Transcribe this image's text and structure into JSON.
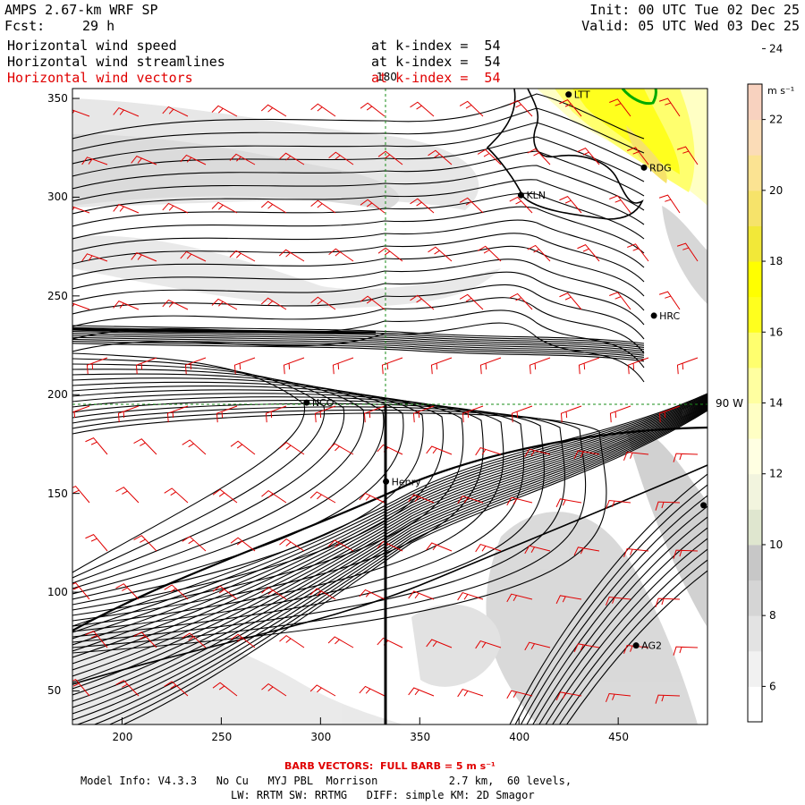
{
  "header": {
    "model": "AMPS 2.67-km WRF SP",
    "fcst_label": "Fcst:",
    "fcst_value": "29 h",
    "init": "Init: 00 UTC Tue 02 Dec 25",
    "valid": "Valid: 05 UTC Wed 03 Dec 25"
  },
  "fields": [
    {
      "name": "Horizontal wind speed",
      "level": "at k-index =  54",
      "color": "#000000"
    },
    {
      "name": "Horizontal wind streamlines",
      "level": "at k-index =  54",
      "color": "#000000"
    },
    {
      "name": "Horizontal wind vectors",
      "level": "at k-index =  54",
      "color": "#e00000"
    }
  ],
  "map": {
    "x_range": [
      175,
      495
    ],
    "y_range": [
      33,
      355
    ],
    "x_ticks": [
      "200",
      "250",
      "300",
      "350",
      "400",
      "450"
    ],
    "y_ticks": [
      "50",
      "100",
      "150",
      "200",
      "250",
      "300",
      "350"
    ],
    "meridian_label": "180",
    "parallel_label": "90 W",
    "stations": [
      {
        "name": "LTT",
        "x": 425,
        "y": 352
      },
      {
        "name": "RDG",
        "x": 463,
        "y": 315
      },
      {
        "name": "KLN",
        "x": 401,
        "y": 301
      },
      {
        "name": "HRC",
        "x": 468,
        "y": 240
      },
      {
        "name": "NCO",
        "x": 293,
        "y": 196
      },
      {
        "name": "Henry",
        "x": 333,
        "y": 156
      },
      {
        "name": "",
        "x": 493,
        "y": 144
      },
      {
        "name": "AG2",
        "x": 459,
        "y": 73
      }
    ]
  },
  "colorbar": {
    "unit": "m s⁻¹",
    "tick_labels": [
      "6",
      "8",
      "10",
      "12",
      "14",
      "16",
      "18",
      "20",
      "22",
      "24"
    ],
    "bands": [
      {
        "color": "#ffffff"
      },
      {
        "color": "#f1f1f1"
      },
      {
        "color": "#e3e3e3"
      },
      {
        "color": "#d5d5d5"
      },
      {
        "color": "#c7c7c7"
      },
      {
        "color": "#dfe6cf"
      },
      {
        "color": "#f2f4de"
      },
      {
        "color": "#ffffe2"
      },
      {
        "color": "#ffffc4"
      },
      {
        "color": "#ffffa0"
      },
      {
        "color": "#ffff6e"
      },
      {
        "color": "#ffff1e"
      },
      {
        "color": "#ffff00"
      },
      {
        "color": "#f2e838"
      },
      {
        "color": "#f6e36a"
      },
      {
        "color": "#fbe392"
      },
      {
        "color": "#fbdcb7"
      },
      {
        "color": "#f8d2bf"
      }
    ]
  },
  "footer": {
    "barb_note": "BARB VECTORS:  FULL BARB = 5 m s⁻¹",
    "model_info": "Model Info: V4.3.3   No Cu   MYJ PBL  Morrison           2.7 km,  60 levels,",
    "physics": "LW: RRTM SW: RRTMG   DIFF: simple KM: 2D Smagor"
  }
}
